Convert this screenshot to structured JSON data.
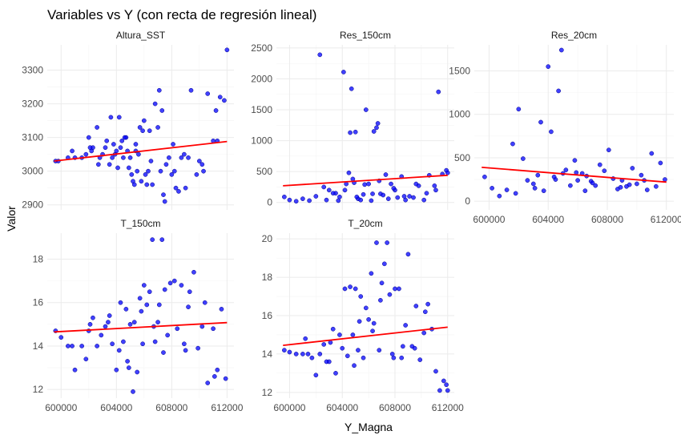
{
  "title": "Variables vs Y (con recta de regresión lineal)",
  "xlabel": "Y_Magna",
  "ylabel": "Valor",
  "colors": {
    "points": "#0000ff",
    "point_edge": "#00008b",
    "regression": "#ff0000",
    "grid_major": "#ebebeb",
    "grid_minor": "#f5f5f5"
  },
  "chart_data": [
    {
      "type": "scatter",
      "panel": "Altura_SST",
      "x_ticks": [],
      "y_ticks": [
        2900,
        3000,
        3100,
        3200,
        3300
      ],
      "xlim": [
        599000,
        612500
      ],
      "ylim": [
        2885,
        3375
      ],
      "regression": {
        "x": [
          599500,
          612000
        ],
        "y": [
          3030,
          3088
        ]
      },
      "x": [
        599600,
        599800,
        600500,
        601000,
        601500,
        601800,
        602000,
        602200,
        602300,
        602600,
        602800,
        603000,
        603200,
        603300,
        603500,
        603600,
        603700,
        603800,
        604000,
        604100,
        604200,
        604300,
        604400,
        604500,
        604700,
        604800,
        604900,
        605000,
        605100,
        605200,
        605300,
        605400,
        605500,
        605600,
        605700,
        605800,
        605900,
        606000,
        606100,
        606200,
        606300,
        606500,
        606600,
        606800,
        607000,
        607100,
        607200,
        607300,
        607500,
        607600,
        607800,
        608000,
        608100,
        608300,
        608500,
        608700,
        608900,
        609200,
        609400,
        609800,
        610000,
        610300,
        610600,
        611000,
        611200,
        611500,
        611800,
        612000,
        602700,
        603900,
        604600,
        605400,
        606400,
        607400,
        608200,
        609000,
        610200,
        611300,
        600800,
        602100
      ],
      "y": [
        3030,
        3030,
        3040,
        3040,
        3040,
        3050,
        3100,
        3060,
        3070,
        3130,
        3040,
        3050,
        3070,
        3090,
        3020,
        3160,
        3040,
        3080,
        3060,
        3010,
        3160,
        3070,
        3090,
        3040,
        3100,
        3060,
        3010,
        3040,
        2990,
        2970,
        2960,
        3060,
        3000,
        3050,
        3130,
        2970,
        3120,
        3150,
        2990,
        2960,
        3000,
        3030,
        2960,
        3200,
        3130,
        3240,
        3000,
        3180,
        2910,
        3020,
        3040,
        2990,
        3080,
        2950,
        2940,
        3040,
        3050,
        3040,
        3240,
        2990,
        3030,
        3000,
        3230,
        3090,
        3180,
        3220,
        3210,
        3360,
        3020,
        3050,
        3100,
        3080,
        3120,
        2930,
        3000,
        2950,
        3020,
        3090,
        3060,
        3070
      ]
    },
    {
      "type": "scatter",
      "panel": "Res_150cm",
      "x_ticks": [],
      "y_ticks": [
        0,
        500,
        1000,
        1500,
        2000,
        2500
      ],
      "xlim": [
        599000,
        612500
      ],
      "ylim": [
        -120,
        2550
      ],
      "regression": {
        "x": [
          599500,
          612000
        ],
        "y": [
          270,
          440
        ]
      },
      "x": [
        599600,
        600000,
        600500,
        601000,
        601500,
        602000,
        602300,
        602800,
        603000,
        603500,
        603800,
        604100,
        604300,
        604500,
        604600,
        604700,
        604800,
        605000,
        605200,
        605400,
        605600,
        605800,
        606000,
        606200,
        606400,
        606700,
        606900,
        607100,
        607300,
        607500,
        607700,
        608000,
        608200,
        608500,
        608800,
        609100,
        609400,
        609800,
        610200,
        610600,
        611000,
        611300,
        611600,
        611900,
        604200,
        606600,
        603300,
        602600,
        604900,
        605700,
        606300,
        607900,
        608700,
        609600,
        610400,
        611100,
        612000,
        603700,
        605100,
        606800
      ],
      "y": [
        90,
        40,
        20,
        60,
        30,
        100,
        2390,
        40,
        200,
        150,
        90,
        2110,
        300,
        480,
        1130,
        1840,
        380,
        1140,
        60,
        40,
        130,
        1500,
        300,
        30,
        1150,
        1280,
        140,
        120,
        450,
        60,
        300,
        200,
        80,
        420,
        40,
        100,
        80,
        270,
        40,
        440,
        270,
        1790,
        460,
        520,
        200,
        1210,
        150,
        250,
        320,
        290,
        140,
        230,
        100,
        300,
        150,
        200,
        480,
        30,
        90,
        350
      ]
    },
    {
      "type": "scatter",
      "panel": "Res_20cm",
      "x_ticks": [
        600000,
        604000,
        608000,
        612000
      ],
      "y_ticks": [
        0,
        500,
        1000,
        1500
      ],
      "xlim": [
        599000,
        612500
      ],
      "ylim": [
        -100,
        1800
      ],
      "regression": {
        "x": [
          599500,
          612000
        ],
        "y": [
          390,
          220
        ]
      },
      "x": [
        599700,
        600200,
        600700,
        601200,
        601600,
        602000,
        602300,
        602600,
        603000,
        603300,
        603500,
        603700,
        604000,
        604200,
        604500,
        604700,
        604900,
        605000,
        605200,
        605500,
        605800,
        606000,
        606300,
        606600,
        606900,
        607200,
        607500,
        607800,
        608100,
        608400,
        608700,
        609000,
        609300,
        609700,
        610000,
        610300,
        610700,
        611000,
        611300,
        611600,
        611900,
        603100,
        604400,
        605900,
        607000,
        608900,
        610500,
        601800,
        606500,
        609500
      ],
      "y": [
        280,
        150,
        60,
        130,
        660,
        1060,
        490,
        240,
        200,
        300,
        910,
        120,
        1550,
        800,
        250,
        1270,
        1740,
        320,
        360,
        180,
        470,
        240,
        320,
        290,
        230,
        180,
        420,
        350,
        590,
        260,
        140,
        240,
        170,
        380,
        200,
        300,
        130,
        550,
        170,
        440,
        250,
        150,
        280,
        330,
        210,
        160,
        240,
        90,
        120,
        190
      ]
    },
    {
      "type": "scatter",
      "panel": "T_150cm",
      "x_ticks": [
        600000,
        604000,
        608000,
        612000
      ],
      "y_ticks": [
        12,
        14,
        16,
        18
      ],
      "xlim": [
        599000,
        612500
      ],
      "ylim": [
        11.6,
        19.2
      ],
      "regression": {
        "x": [
          599500,
          612000
        ],
        "y": [
          14.65,
          15.08
        ]
      },
      "x": [
        599600,
        600000,
        600500,
        600800,
        601000,
        601500,
        601800,
        602000,
        602300,
        602600,
        602900,
        603200,
        603500,
        603700,
        604000,
        604200,
        604300,
        604500,
        604700,
        604800,
        605000,
        605200,
        605300,
        605500,
        605700,
        605800,
        606000,
        606200,
        606400,
        606600,
        606800,
        607000,
        607100,
        607300,
        607500,
        607700,
        607900,
        608200,
        608400,
        608700,
        609000,
        609300,
        609600,
        609900,
        610200,
        610600,
        611000,
        611300,
        611600,
        611900,
        603400,
        605900,
        607400,
        608900,
        610400,
        602100,
        604900,
        606700,
        609200,
        611100
      ],
      "y": [
        14.7,
        14.4,
        14.0,
        14.0,
        12.9,
        14.0,
        13.4,
        14.7,
        15.3,
        14.0,
        14.5,
        14.9,
        15.4,
        14.1,
        12.9,
        13.8,
        16.0,
        14.2,
        15.7,
        13.3,
        15.0,
        11.9,
        15.1,
        12.8,
        16.2,
        15.6,
        16.8,
        15.9,
        16.5,
        18.9,
        14.2,
        15.1,
        15.9,
        18.9,
        16.6,
        14.5,
        16.9,
        17.0,
        14.8,
        16.8,
        13.8,
        16.5,
        17.4,
        13.9,
        14.9,
        12.3,
        14.8,
        12.9,
        15.7,
        12.5,
        15.1,
        14.1,
        13.7,
        14.1,
        16.0,
        15.0,
        13.0,
        14.9,
        15.8,
        12.6
      ]
    },
    {
      "type": "scatter",
      "panel": "T_20cm",
      "x_ticks": [
        600000,
        604000,
        608000,
        612000
      ],
      "y_ticks": [
        12,
        14,
        16,
        18,
        20
      ],
      "xlim": [
        599000,
        612500
      ],
      "ylim": [
        11.7,
        20.3
      ],
      "regression": {
        "x": [
          599500,
          612000
        ],
        "y": [
          14.45,
          15.4
        ]
      },
      "x": [
        599600,
        600000,
        600500,
        601000,
        601400,
        601700,
        602000,
        602300,
        602600,
        603000,
        603300,
        603500,
        603800,
        604000,
        604200,
        604400,
        604600,
        604800,
        605000,
        605200,
        605400,
        605600,
        605800,
        606000,
        606200,
        606400,
        606600,
        606800,
        607000,
        607200,
        607400,
        607600,
        607800,
        608000,
        608300,
        608500,
        608800,
        609000,
        609300,
        609600,
        609900,
        610200,
        610500,
        610800,
        611100,
        611400,
        611700,
        612000,
        603100,
        604900,
        606300,
        607900,
        609500,
        602800,
        605300,
        608600,
        610300,
        601200,
        606900,
        611900
      ],
      "y": [
        14.2,
        14.1,
        14.0,
        14.0,
        14.0,
        13.8,
        12.9,
        14.0,
        14.5,
        13.6,
        15.3,
        13.0,
        15.0,
        14.3,
        17.4,
        13.9,
        17.5,
        15.0,
        17.4,
        14.2,
        17.0,
        13.8,
        16.4,
        15.8,
        18.2,
        15.6,
        19.8,
        14.2,
        17.7,
        18.7,
        19.8,
        17.1,
        14.0,
        17.4,
        17.4,
        13.8,
        15.5,
        19.2,
        14.4,
        16.5,
        13.7,
        15.1,
        16.6,
        15.3,
        13.1,
        12.1,
        12.6,
        12.1,
        14.6,
        13.4,
        15.2,
        13.8,
        14.3,
        13.6,
        15.7,
        14.4,
        16.2,
        14.8,
        16.8,
        12.4
      ]
    }
  ]
}
